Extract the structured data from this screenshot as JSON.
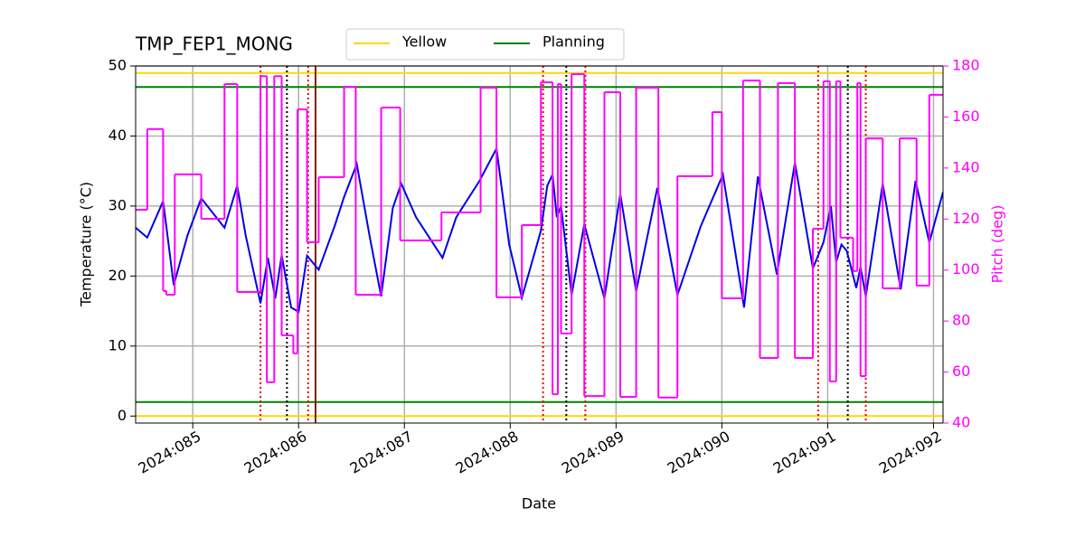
{
  "chart_data": {
    "type": "line",
    "title": "TMP_FEP1_MONG",
    "x_label": "Date",
    "y_label": "Temperature (°C)",
    "y2_label": "Pitch (deg)",
    "xlim": [
      84.46,
      92.09
    ],
    "xticks": [
      {
        "value": 85,
        "label": "2024:085"
      },
      {
        "value": 86,
        "label": "2024:086"
      },
      {
        "value": 87,
        "label": "2024:087"
      },
      {
        "value": 88,
        "label": "2024:088"
      },
      {
        "value": 89,
        "label": "2024:089"
      },
      {
        "value": 90,
        "label": "2024:090"
      },
      {
        "value": 91,
        "label": "2024:091"
      },
      {
        "value": 92,
        "label": "2024:092"
      }
    ],
    "ylim": [
      -1,
      50
    ],
    "yticks": [
      0,
      10,
      20,
      30,
      40,
      50
    ],
    "y2lim": [
      40,
      180
    ],
    "y2ticks": [
      40,
      60,
      80,
      100,
      120,
      140,
      160,
      180
    ],
    "y2color": "#ff00ff",
    "grid": true,
    "legend": "upper center",
    "series": [
      {
        "color": "#0000ee",
        "x": [
          84.46,
          84.57,
          84.72,
          84.82,
          84.95,
          85.08,
          85.3,
          85.42,
          85.5,
          85.64,
          85.71,
          85.78,
          85.84,
          85.93,
          86.0,
          86.08,
          86.19,
          86.34,
          86.43,
          86.55,
          86.67,
          86.78,
          86.89,
          86.97,
          87.11,
          87.36,
          87.49,
          87.71,
          87.87,
          87.99,
          88.11,
          88.29,
          88.35,
          88.4,
          88.44,
          88.48,
          88.58,
          88.7,
          88.89,
          89.04,
          89.19,
          89.39,
          89.58,
          89.8,
          90.01,
          90.21,
          90.34,
          90.52,
          90.69,
          90.86,
          90.96,
          91.03,
          91.08,
          91.13,
          91.18,
          91.27,
          91.31,
          91.36,
          91.52,
          91.69,
          91.83,
          91.96,
          92.09
        ],
        "values": [
          26.9,
          25.5,
          30.7,
          18.7,
          25.8,
          31.1,
          26.9,
          32.9,
          25.8,
          16.1,
          22.6,
          16.8,
          23.0,
          15.5,
          14.9,
          22.9,
          20.9,
          27.1,
          31.3,
          36.0,
          25.8,
          17.1,
          29.7,
          33.2,
          28.4,
          22.6,
          28.4,
          33.6,
          38.2,
          24.5,
          16.9,
          26.5,
          32.9,
          34.5,
          28.4,
          30.0,
          17.3,
          27.4,
          16.8,
          31.7,
          17.8,
          32.6,
          17.3,
          27.1,
          34.5,
          15.5,
          34.2,
          20.2,
          36.2,
          21.1,
          24.8,
          30.0,
          22.0,
          24.5,
          23.6,
          18.3,
          21.3,
          17.1,
          33.2,
          18.1,
          33.6,
          24.8,
          32.0
        ]
      },
      {
        "color": "#ff00ff",
        "axis": "y2",
        "step": true,
        "x": [
          84.46,
          84.57,
          84.72,
          84.75,
          84.83,
          85.08,
          85.3,
          85.42,
          85.64,
          85.7,
          85.77,
          85.84,
          85.95,
          85.99,
          86.08,
          86.19,
          86.43,
          86.54,
          86.78,
          86.96,
          87.35,
          87.72,
          87.87,
          88.11,
          88.29,
          88.4,
          88.45,
          88.48,
          88.58,
          88.7,
          88.89,
          89.04,
          89.19,
          89.4,
          89.58,
          89.91,
          90.0,
          90.2,
          90.36,
          90.53,
          90.69,
          90.86,
          90.96,
          91.02,
          91.08,
          91.12,
          91.24,
          91.28,
          91.31,
          91.36,
          91.52,
          91.68,
          91.84,
          91.96,
          92.09
        ],
        "values": [
          123.6,
          155.3,
          91.8,
          90.3,
          137.5,
          120.1,
          172.9,
          91.4,
          176.0,
          56.0,
          176.0,
          74.4,
          67.3,
          163.0,
          110.9,
          136.4,
          171.8,
          90.3,
          163.7,
          111.6,
          122.6,
          171.5,
          89.3,
          117.6,
          173.6,
          51.3,
          172.9,
          75.1,
          176.8,
          50.6,
          169.7,
          50.3,
          171.5,
          50.0,
          136.8,
          161.9,
          88.9,
          174.3,
          65.5,
          173.3,
          65.5,
          116.2,
          174.0,
          56.3,
          174.0,
          112.7,
          99.6,
          173.3,
          58.4,
          151.6,
          92.8,
          151.6,
          93.9,
          168.7,
          168.7
        ]
      }
    ],
    "hlines": [
      {
        "name": "Yellow",
        "color": "#ffd700",
        "values": [
          49,
          0
        ]
      },
      {
        "name": "Planning",
        "color": "#008000",
        "values": [
          47,
          2
        ]
      }
    ],
    "vlines": [
      {
        "color": "#ee0000",
        "style": "dotted",
        "x": [
          85.64,
          86.09,
          88.31,
          88.71,
          90.91,
          91.36
        ]
      },
      {
        "color": "#000000",
        "style": "dotted",
        "x": [
          85.89,
          88.53,
          91.19
        ]
      },
      {
        "color": "#802000",
        "style": "solid",
        "x": [
          86.16
        ]
      }
    ]
  }
}
